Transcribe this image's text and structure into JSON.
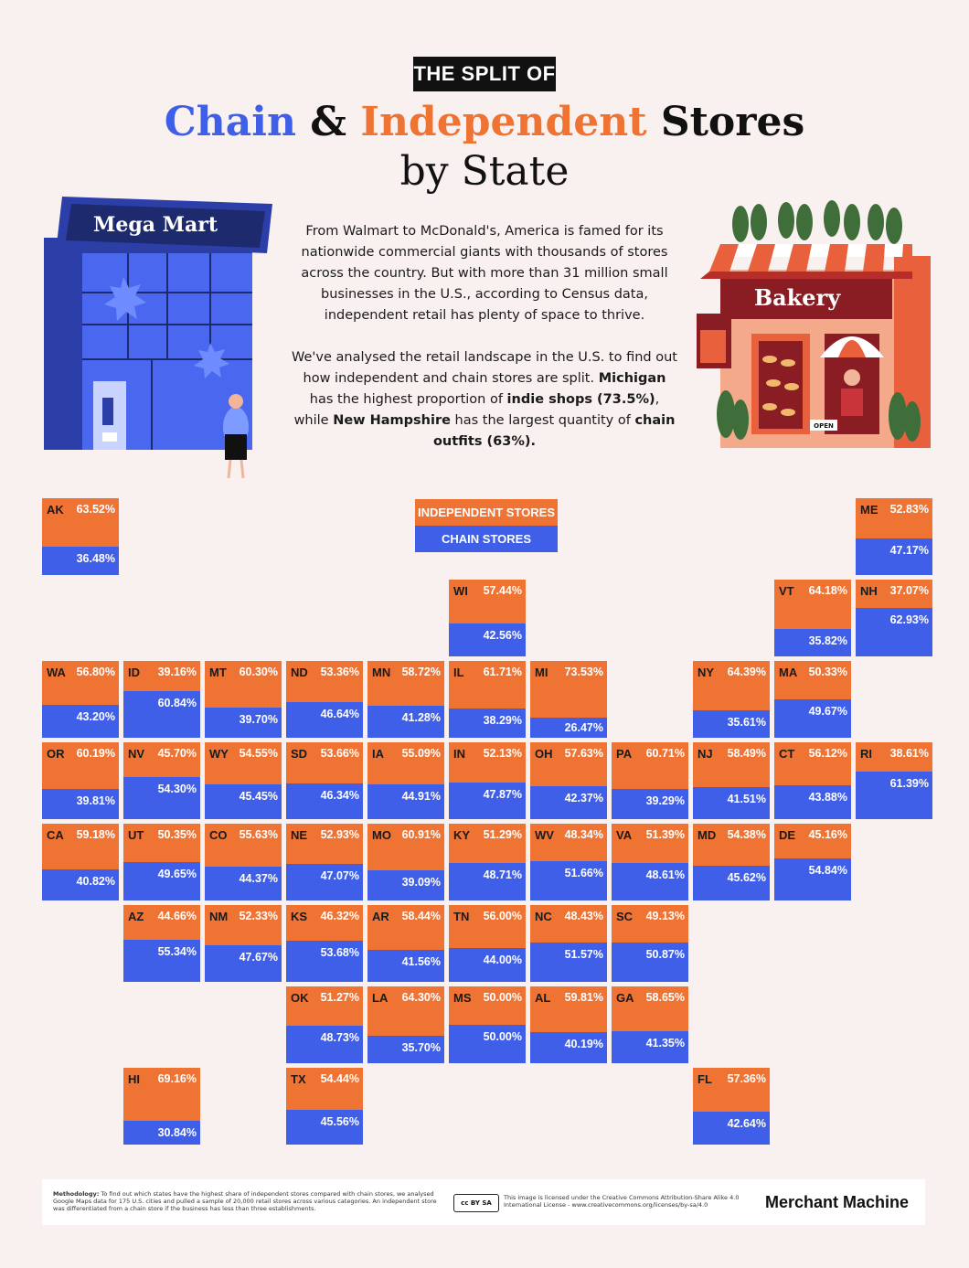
{
  "header": {
    "kicker": "THE SPLIT OF",
    "title_chain": "Chain",
    "title_amp": " & ",
    "title_indep": "Independent",
    "title_stores": " Stores",
    "title_line2": "by State"
  },
  "illustrations": {
    "left_sign": "Mega Mart",
    "right_sign": "Bakery",
    "open_sign": "OPEN"
  },
  "intro": {
    "p1": "From Walmart to McDonald's, America is famed for its nationwide commercial giants with thousands of stores across the country. But with more than 31 million small businesses in the U.S., according to Census data, independent retail has plenty of space to thrive.",
    "p2_a": "We've analysed the retail landscape in the U.S. to find out how independent and chain stores are split. ",
    "p2_b": "Michigan",
    "p2_c": " has the highest proportion of ",
    "p2_d": "indie shops (73.5%)",
    "p2_e": ", while ",
    "p2_f": "New Hampshire",
    "p2_g": " has the largest quantity of ",
    "p2_h": "chain outfits (63%)."
  },
  "legend": {
    "independent": "INDEPENDENT STORES",
    "chain": "CHAIN STORES"
  },
  "colors": {
    "independent": "#ef7434",
    "chain": "#3f5fe8",
    "background": "#f8f1f0"
  },
  "chart_data": {
    "type": "tile-map",
    "series": [
      {
        "name": "INDEPENDENT STORES"
      },
      {
        "name": "CHAIN STORES"
      }
    ],
    "states": [
      {
        "state": "AK",
        "col": 0,
        "row": 0,
        "independent": 63.52,
        "chain": 36.48,
        "ind_label": "63.52%",
        "chain_label": "36.48%"
      },
      {
        "state": "ME",
        "col": 10,
        "row": 0,
        "independent": 52.83,
        "chain": 47.17,
        "ind_label": "52.83%",
        "chain_label": "47.17%"
      },
      {
        "state": "WI",
        "col": 5,
        "row": 1,
        "independent": 57.44,
        "chain": 42.56,
        "ind_label": "57.44%",
        "chain_label": "42.56%"
      },
      {
        "state": "VT",
        "col": 9,
        "row": 1,
        "independent": 64.18,
        "chain": 35.82,
        "ind_label": "64.18%",
        "chain_label": "35.82%"
      },
      {
        "state": "NH",
        "col": 10,
        "row": 1,
        "independent": 37.07,
        "chain": 62.93,
        "ind_label": "37.07%",
        "chain_label": "62.93%"
      },
      {
        "state": "WA",
        "col": 0,
        "row": 2,
        "independent": 56.8,
        "chain": 43.2,
        "ind_label": "56.80%",
        "chain_label": "43.20%"
      },
      {
        "state": "ID",
        "col": 1,
        "row": 2,
        "independent": 39.16,
        "chain": 60.84,
        "ind_label": "39.16%",
        "chain_label": "60.84%"
      },
      {
        "state": "MT",
        "col": 2,
        "row": 2,
        "independent": 60.3,
        "chain": 39.7,
        "ind_label": "60.30%",
        "chain_label": "39.70%"
      },
      {
        "state": "ND",
        "col": 3,
        "row": 2,
        "independent": 53.36,
        "chain": 46.64,
        "ind_label": "53.36%",
        "chain_label": "46.64%"
      },
      {
        "state": "MN",
        "col": 4,
        "row": 2,
        "independent": 58.72,
        "chain": 41.28,
        "ind_label": "58.72%",
        "chain_label": "41.28%"
      },
      {
        "state": "IL",
        "col": 5,
        "row": 2,
        "independent": 61.71,
        "chain": 38.29,
        "ind_label": "61.71%",
        "chain_label": "38.29%"
      },
      {
        "state": "MI",
        "col": 6,
        "row": 2,
        "independent": 73.53,
        "chain": 26.47,
        "ind_label": "73.53%",
        "chain_label": "26.47%"
      },
      {
        "state": "NY",
        "col": 8,
        "row": 2,
        "independent": 64.39,
        "chain": 35.61,
        "ind_label": "64.39%",
        "chain_label": "35.61%"
      },
      {
        "state": "MA",
        "col": 9,
        "row": 2,
        "independent": 50.33,
        "chain": 49.67,
        "ind_label": "50.33%",
        "chain_label": "49.67%"
      },
      {
        "state": "OR",
        "col": 0,
        "row": 3,
        "independent": 60.19,
        "chain": 39.81,
        "ind_label": "60.19%",
        "chain_label": "39.81%"
      },
      {
        "state": "NV",
        "col": 1,
        "row": 3,
        "independent": 45.7,
        "chain": 54.3,
        "ind_label": "45.70%",
        "chain_label": "54.30%"
      },
      {
        "state": "WY",
        "col": 2,
        "row": 3,
        "independent": 54.55,
        "chain": 45.45,
        "ind_label": "54.55%",
        "chain_label": "45.45%"
      },
      {
        "state": "SD",
        "col": 3,
        "row": 3,
        "independent": 53.66,
        "chain": 46.34,
        "ind_label": "53.66%",
        "chain_label": "46.34%"
      },
      {
        "state": "IA",
        "col": 4,
        "row": 3,
        "independent": 55.09,
        "chain": 44.91,
        "ind_label": "55.09%",
        "chain_label": "44.91%"
      },
      {
        "state": "IN",
        "col": 5,
        "row": 3,
        "independent": 52.13,
        "chain": 47.87,
        "ind_label": "52.13%",
        "chain_label": "47.87%"
      },
      {
        "state": "OH",
        "col": 6,
        "row": 3,
        "independent": 57.63,
        "chain": 42.37,
        "ind_label": "57.63%",
        "chain_label": "42.37%"
      },
      {
        "state": "PA",
        "col": 7,
        "row": 3,
        "independent": 60.71,
        "chain": 39.29,
        "ind_label": "60.71%",
        "chain_label": "39.29%"
      },
      {
        "state": "NJ",
        "col": 8,
        "row": 3,
        "independent": 58.49,
        "chain": 41.51,
        "ind_label": "58.49%",
        "chain_label": "41.51%"
      },
      {
        "state": "CT",
        "col": 9,
        "row": 3,
        "independent": 56.12,
        "chain": 43.88,
        "ind_label": "56.12%",
        "chain_label": "43.88%"
      },
      {
        "state": "RI",
        "col": 10,
        "row": 3,
        "independent": 38.61,
        "chain": 61.39,
        "ind_label": "38.61%",
        "chain_label": "61.39%"
      },
      {
        "state": "CA",
        "col": 0,
        "row": 4,
        "independent": 59.18,
        "chain": 40.82,
        "ind_label": "59.18%",
        "chain_label": "40.82%"
      },
      {
        "state": "UT",
        "col": 1,
        "row": 4,
        "independent": 50.35,
        "chain": 49.65,
        "ind_label": "50.35%",
        "chain_label": "49.65%"
      },
      {
        "state": "CO",
        "col": 2,
        "row": 4,
        "independent": 55.63,
        "chain": 44.37,
        "ind_label": "55.63%",
        "chain_label": "44.37%"
      },
      {
        "state": "NE",
        "col": 3,
        "row": 4,
        "independent": 52.93,
        "chain": 47.07,
        "ind_label": "52.93%",
        "chain_label": "47.07%"
      },
      {
        "state": "MO",
        "col": 4,
        "row": 4,
        "independent": 60.91,
        "chain": 39.09,
        "ind_label": "60.91%",
        "chain_label": "39.09%"
      },
      {
        "state": "KY",
        "col": 5,
        "row": 4,
        "independent": 51.29,
        "chain": 48.71,
        "ind_label": "51.29%",
        "chain_label": "48.71%"
      },
      {
        "state": "WV",
        "col": 6,
        "row": 4,
        "independent": 48.34,
        "chain": 51.66,
        "ind_label": "48.34%",
        "chain_label": "51.66%"
      },
      {
        "state": "VA",
        "col": 7,
        "row": 4,
        "independent": 51.39,
        "chain": 48.61,
        "ind_label": "51.39%",
        "chain_label": "48.61%"
      },
      {
        "state": "MD",
        "col": 8,
        "row": 4,
        "independent": 54.38,
        "chain": 45.62,
        "ind_label": "54.38%",
        "chain_label": "45.62%"
      },
      {
        "state": "DE",
        "col": 9,
        "row": 4,
        "independent": 45.16,
        "chain": 54.84,
        "ind_label": "45.16%",
        "chain_label": "54.84%"
      },
      {
        "state": "AZ",
        "col": 1,
        "row": 5,
        "independent": 44.66,
        "chain": 55.34,
        "ind_label": "44.66%",
        "chain_label": "55.34%"
      },
      {
        "state": "NM",
        "col": 2,
        "row": 5,
        "independent": 52.33,
        "chain": 47.67,
        "ind_label": "52.33%",
        "chain_label": "47.67%"
      },
      {
        "state": "KS",
        "col": 3,
        "row": 5,
        "independent": 46.32,
        "chain": 53.68,
        "ind_label": "46.32%",
        "chain_label": "53.68%"
      },
      {
        "state": "AR",
        "col": 4,
        "row": 5,
        "independent": 58.44,
        "chain": 41.56,
        "ind_label": "58.44%",
        "chain_label": "41.56%"
      },
      {
        "state": "TN",
        "col": 5,
        "row": 5,
        "independent": 56.0,
        "chain": 44.0,
        "ind_label": "56.00%",
        "chain_label": "44.00%"
      },
      {
        "state": "NC",
        "col": 6,
        "row": 5,
        "independent": 48.43,
        "chain": 51.57,
        "ind_label": "48.43%",
        "chain_label": "51.57%"
      },
      {
        "state": "SC",
        "col": 7,
        "row": 5,
        "independent": 49.13,
        "chain": 50.87,
        "ind_label": "49.13%",
        "chain_label": "50.87%"
      },
      {
        "state": "OK",
        "col": 3,
        "row": 6,
        "independent": 51.27,
        "chain": 48.73,
        "ind_label": "51.27%",
        "chain_label": "48.73%"
      },
      {
        "state": "LA",
        "col": 4,
        "row": 6,
        "independent": 64.3,
        "chain": 35.7,
        "ind_label": "64.30%",
        "chain_label": "35.70%"
      },
      {
        "state": "MS",
        "col": 5,
        "row": 6,
        "independent": 50.0,
        "chain": 50.0,
        "ind_label": "50.00%",
        "chain_label": "50.00%"
      },
      {
        "state": "AL",
        "col": 6,
        "row": 6,
        "independent": 59.81,
        "chain": 40.19,
        "ind_label": "59.81%",
        "chain_label": "40.19%"
      },
      {
        "state": "GA",
        "col": 7,
        "row": 6,
        "independent": 58.65,
        "chain": 41.35,
        "ind_label": "58.65%",
        "chain_label": "41.35%"
      },
      {
        "state": "HI",
        "col": 1,
        "row": 7,
        "independent": 69.16,
        "chain": 30.84,
        "ind_label": "69.16%",
        "chain_label": "30.84%"
      },
      {
        "state": "TX",
        "col": 3,
        "row": 7,
        "independent": 54.44,
        "chain": 45.56,
        "ind_label": "54.44%",
        "chain_label": "45.56%"
      },
      {
        "state": "FL",
        "col": 8,
        "row": 7,
        "independent": 57.36,
        "chain": 42.64,
        "ind_label": "57.36%",
        "chain_label": "42.64%"
      }
    ]
  },
  "footer": {
    "method_label": "Methodology:",
    "method_text": " To find out which states have the highest share of independent stores compared with chain stores, we analysed Google Maps data for 175 U.S. cities and pulled a sample of 20,000 retail stores across various categories. An independent store was differentiated from a chain store if the business has less than three establishments.",
    "cc_badge": "cc BY SA",
    "license": "This image is licensed under the Creative Commons Attribution-Share Alike 4.0 International License - www.creativecommons.org/licenses/by-sa/4.0",
    "brand": "Merchant Machine"
  }
}
